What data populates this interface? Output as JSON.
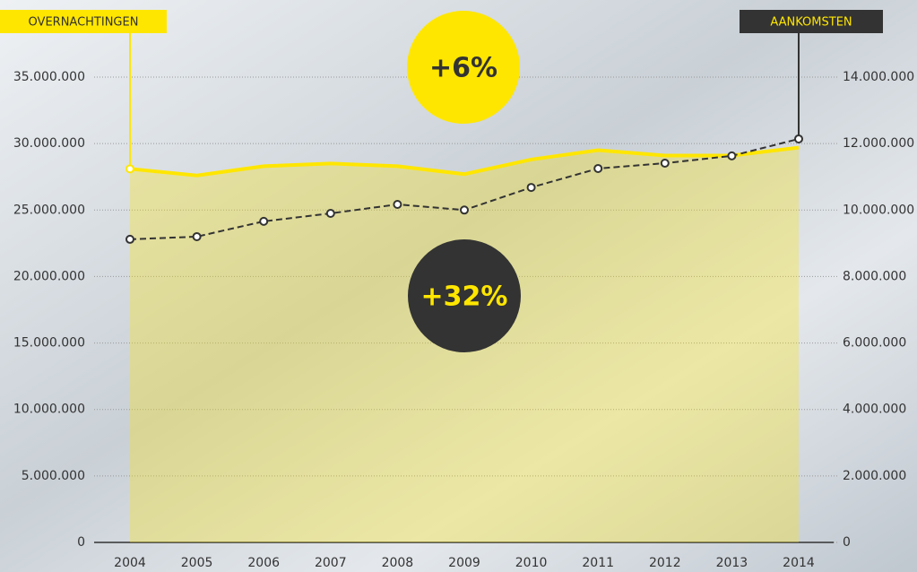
{
  "chart_data": {
    "type": "line",
    "categories": [
      "2004",
      "2005",
      "2006",
      "2007",
      "2008",
      "2009",
      "2010",
      "2011",
      "2012",
      "2013",
      "2014"
    ],
    "series": [
      {
        "name": "OVERNACHTINGEN",
        "color": "#ffe600",
        "axis": "y",
        "values": [
          28100000,
          27600000,
          28300000,
          28500000,
          28300000,
          27700000,
          28800000,
          29500000,
          29100000,
          29100000,
          29700000
        ]
      },
      {
        "name": "AANKOMSTEN",
        "color": "#333333",
        "axis": "y2",
        "values": [
          9120000,
          9200000,
          9660000,
          9900000,
          10170000,
          10000000,
          10680000,
          11250000,
          11410000,
          11630000,
          12140000
        ]
      }
    ],
    "annotations": [
      "+6%",
      "+32%"
    ],
    "ylim": [
      0,
      35000000
    ],
    "yticks": [
      0,
      {
        "value": 5000000,
        "label": "5.000.000"
      },
      {
        "value": 10000000,
        "label": "10.000.000"
      },
      {
        "value": 15000000,
        "label": "15.000.000"
      },
      {
        "value": 20000000,
        "label": "20.000.000"
      },
      {
        "value": 25000000,
        "label": "25.000.000"
      },
      {
        "value": 30000000,
        "label": "30.000.000"
      },
      {
        "value": 35000000,
        "label": "35.000.000"
      }
    ],
    "y2lim": [
      0,
      14000000
    ],
    "y2ticks": [
      0,
      {
        "value": 2000000,
        "label": "2.000.000"
      },
      {
        "value": 4000000,
        "label": "4.000.000"
      },
      {
        "value": 6000000,
        "label": "6.000.000"
      },
      {
        "value": 8000000,
        "label": "8.000.000"
      },
      {
        "value": 10000000,
        "label": "10.000.000"
      },
      {
        "value": 12000000,
        "label": "12.000.000"
      },
      {
        "value": 14000000,
        "label": "14.000.000"
      }
    ],
    "grid": true
  }
}
